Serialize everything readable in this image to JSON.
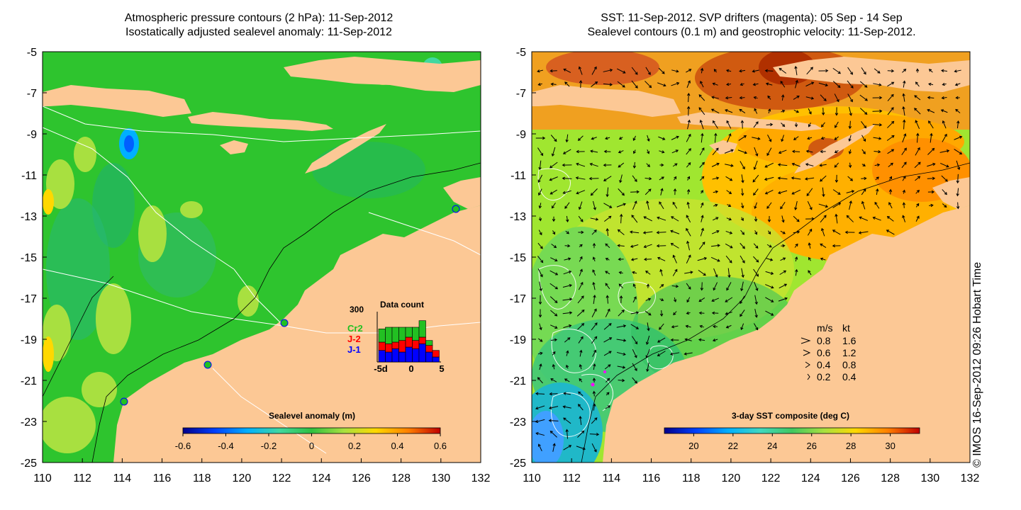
{
  "left_panel": {
    "title_line1": "Atmospheric pressure contours (2 hPa): 11-Sep-2012",
    "title_line2": "Isostatically adjusted sealevel anomaly: 11-Sep-2012",
    "colorbar": {
      "label": "Sealevel anomaly (m)",
      "ticks": [
        "-0.6",
        "-0.4",
        "-0.2",
        "0",
        "0.2",
        "0.4",
        "0.6"
      ],
      "colors": [
        "#00008b",
        "#0040ff",
        "#00b0ff",
        "#40d8a0",
        "#30c040",
        "#a8e040",
        "#ffd800",
        "#ff8000",
        "#c00000"
      ]
    },
    "inset": {
      "title": "Data count",
      "y_max_label": "300",
      "x_labels": [
        "-5d",
        "0",
        "5"
      ],
      "legend": [
        {
          "label": "Cr2",
          "color": "#22c022"
        },
        {
          "label": "J-2",
          "color": "#ff0000"
        },
        {
          "label": "J-1",
          "color": "#0000ff"
        }
      ],
      "bars": [
        {
          "j1": 70,
          "j2": 50,
          "cr2": 80
        },
        {
          "j1": 60,
          "j2": 50,
          "cr2": 100
        },
        {
          "j1": 80,
          "j2": 40,
          "cr2": 90
        },
        {
          "j1": 60,
          "j2": 70,
          "cr2": 80
        },
        {
          "j1": 90,
          "j2": 60,
          "cr2": 60
        },
        {
          "j1": 80,
          "j2": 50,
          "cr2": 80
        },
        {
          "j1": 110,
          "j2": 40,
          "cr2": 100
        },
        {
          "j1": 60,
          "j2": 40,
          "cr2": 30
        },
        {
          "j1": 30,
          "j2": 40,
          "cr2": 0
        }
      ]
    }
  },
  "right_panel": {
    "title_line1": "SST: 11-Sep-2012. SVP drifters (magenta): 05 Sep - 14 Sep",
    "title_line2": "Sealevel contours (0.1 m) and geostrophic velocity: 11-Sep-2012.",
    "colorbar": {
      "label": "3-day SST composite (deg C)",
      "ticks": [
        "20",
        "22",
        "24",
        "26",
        "28",
        "30"
      ],
      "colors": [
        "#00008b",
        "#0040ff",
        "#00b0ff",
        "#40d8c0",
        "#40c860",
        "#a8e040",
        "#ffd800",
        "#ff8000",
        "#c00000"
      ]
    },
    "velocity_legend": {
      "header_ms": "m/s",
      "header_kt": "kt",
      "rows": [
        {
          "ms": "0.8",
          "kt": "1.6"
        },
        {
          "ms": "0.6",
          "kt": "1.2"
        },
        {
          "ms": "0.4",
          "kt": "0.8"
        },
        {
          "ms": "0.2",
          "kt": "0.4"
        }
      ]
    }
  },
  "axes": {
    "x_ticks": [
      "110",
      "112",
      "114",
      "116",
      "118",
      "120",
      "122",
      "124",
      "126",
      "128",
      "130",
      "132"
    ],
    "y_ticks": [
      "-5",
      "-7",
      "-9",
      "-11",
      "-13",
      "-15",
      "-17",
      "-19",
      "-21",
      "-23",
      "-25"
    ],
    "lon_range": [
      110,
      132
    ],
    "lat_range": [
      -25,
      -5
    ]
  },
  "side_note": "© IMOS 16-Sep-2012 09:26 Hobart Time",
  "colors": {
    "land": "#fcc895",
    "sla_base": "#2ec42e",
    "sst_base": "#a0e630"
  }
}
